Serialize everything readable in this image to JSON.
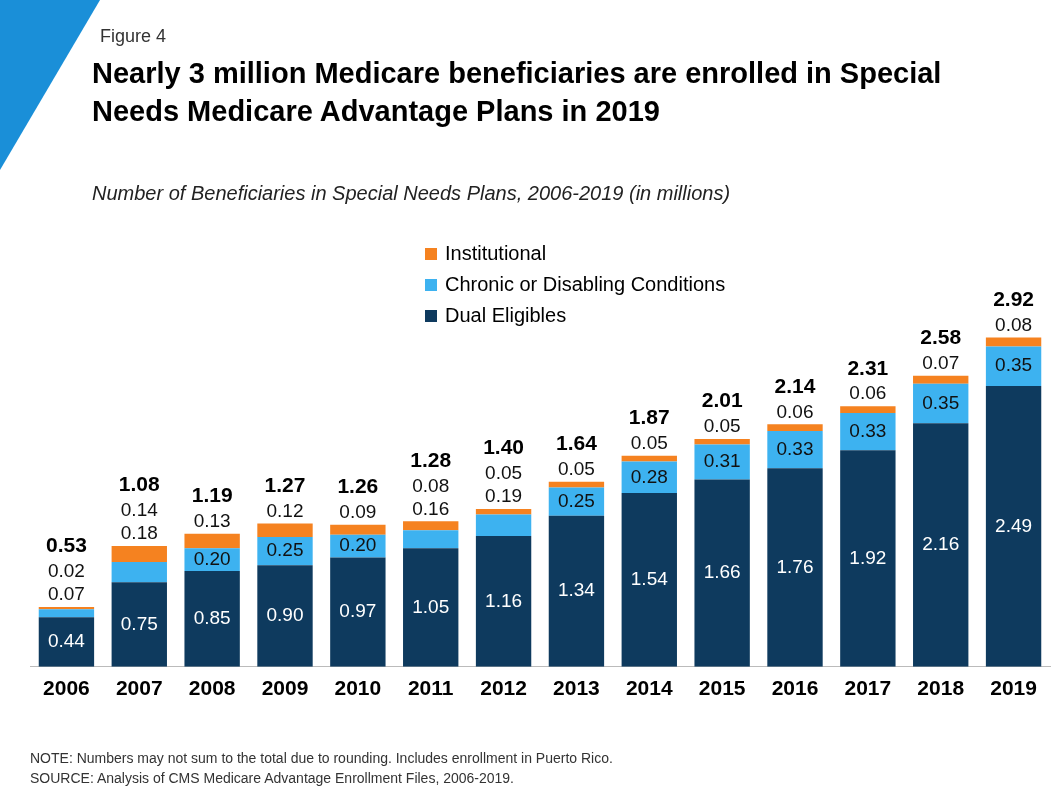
{
  "chart_data": {
    "type": "bar",
    "title": "Nearly 3 million Medicare beneficiaries are enrolled in Special Needs Medicare Advantage Plans in 2019",
    "subtitle": "Number of Beneficiaries in Special Needs Plans, 2006-2019 (in millions)",
    "annotations": [
      "Figure 4",
      "NOTE: Numbers may not sum to the total due to rounding. Includes enrollment in Puerto Rico.",
      "SOURCE: Analysis of CMS Medicare Advantage Enrollment Files, 2006-2019."
    ],
    "categories": [
      "2006",
      "2007",
      "2008",
      "2009",
      "2010",
      "2011",
      "2012",
      "2013",
      "2014",
      "2015",
      "2016",
      "2017",
      "2018",
      "2019"
    ],
    "stacked": true,
    "legend": "top left",
    "grid": false,
    "tick_labels": "x",
    "series": [
      {
        "name": "Dual Eligibles",
        "color": "#0e3a5e",
        "values": [
          0.44,
          0.75,
          0.85,
          0.9,
          0.97,
          1.05,
          1.16,
          1.34,
          1.54,
          1.66,
          1.76,
          1.92,
          2.16,
          2.49
        ],
        "value_labels": [
          "0.44",
          "0.75",
          "0.85",
          "0.90",
          "0.97",
          "1.05",
          "1.16",
          "1.34",
          "1.54",
          "1.66",
          "1.76",
          "1.92",
          "2.16",
          "2.49"
        ]
      },
      {
        "name": "Chronic or Disabling Conditions",
        "color": "#3db2f0",
        "values": [
          0.07,
          0.18,
          0.2,
          0.25,
          0.2,
          0.16,
          0.19,
          0.25,
          0.28,
          0.31,
          0.33,
          0.33,
          0.35,
          0.35
        ],
        "value_labels": [
          "0.07",
          "0.18",
          "0.20",
          "0.25",
          "0.20",
          "0.16",
          "0.19",
          "0.25",
          "0.28",
          "0.31",
          "0.33",
          "0.33",
          "0.35",
          "0.35"
        ]
      },
      {
        "name": "Institutional",
        "color": "#f58220",
        "values": [
          0.02,
          0.14,
          0.13,
          0.12,
          0.09,
          0.08,
          0.05,
          0.05,
          0.05,
          0.05,
          0.06,
          0.06,
          0.07,
          0.08
        ],
        "value_labels": [
          "0.02",
          "0.14",
          "0.13",
          "0.12",
          "0.09",
          "0.08",
          "0.05",
          "0.05",
          "0.05",
          "0.05",
          "0.06",
          "0.06",
          "0.07",
          "0.08"
        ]
      }
    ],
    "totals": [
      "0.53",
      "1.08",
      "1.19",
      "1.27",
      "1.26",
      "1.28",
      "1.40",
      "1.64",
      "1.87",
      "2.01",
      "2.14",
      "2.31",
      "2.58",
      "2.92"
    ]
  }
}
